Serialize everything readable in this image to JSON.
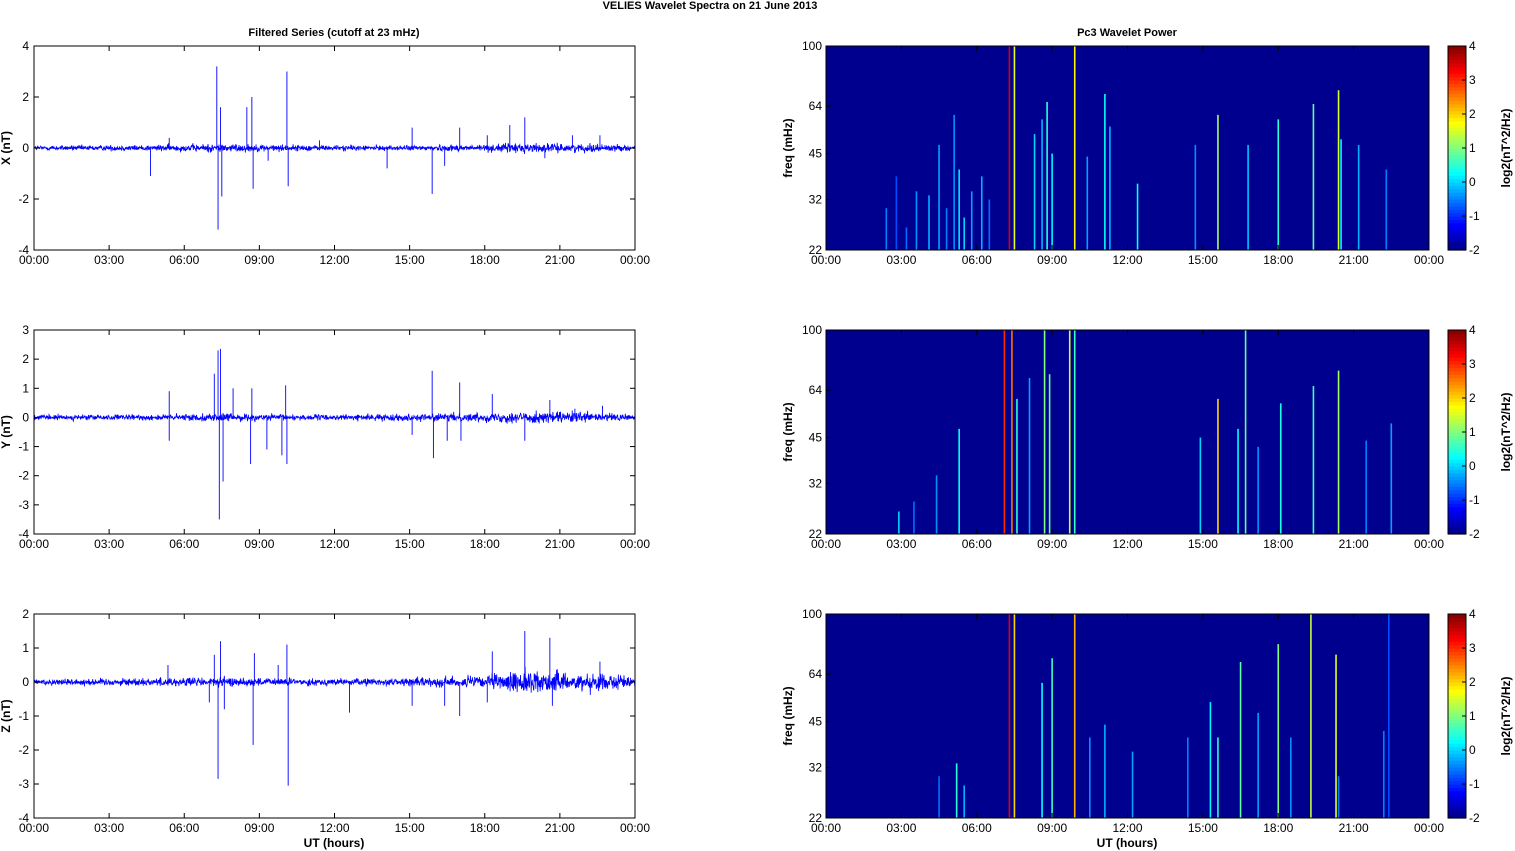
{
  "figure": {
    "title": "VELIES Wavelet Spectra on 21 June      2013",
    "left_title": "Filtered Series (cutoff at 23 mHz)",
    "right_title": "Pc3 Wavelet Power",
    "xlabel": "UT (hours)"
  },
  "colors": {
    "series_line": "#0000ff",
    "spectrogram_background": "#00008f",
    "colormap": "jet"
  },
  "chart_data": [
    {
      "type": "line",
      "id": "x-series",
      "ylabel": "X (nT)",
      "xlim": [
        0,
        24
      ],
      "ylim": [
        -4,
        4
      ],
      "xticks": [
        "00:00",
        "03:00",
        "06:00",
        "09:00",
        "12:00",
        "15:00",
        "18:00",
        "21:00",
        "00:00"
      ],
      "yticks": [
        -4,
        -2,
        0,
        2,
        4
      ],
      "noise": [
        [
          0,
          0.08
        ],
        [
          4.5,
          0.1
        ],
        [
          6,
          0.12
        ],
        [
          7.5,
          0.15
        ],
        [
          9,
          0.12
        ],
        [
          11,
          0.1
        ],
        [
          14,
          0.08
        ],
        [
          18,
          0.12
        ],
        [
          19.5,
          0.18
        ],
        [
          21,
          0.13
        ],
        [
          22.5,
          0.14
        ],
        [
          24,
          0.08
        ]
      ],
      "spikes": [
        [
          4.65,
          -1.1
        ],
        [
          5.4,
          0.4
        ],
        [
          7.3,
          3.2
        ],
        [
          7.35,
          -3.2
        ],
        [
          7.45,
          1.6
        ],
        [
          7.5,
          -1.9
        ],
        [
          8.5,
          1.6
        ],
        [
          8.7,
          2.0
        ],
        [
          8.75,
          -1.6
        ],
        [
          9.35,
          -0.5
        ],
        [
          10.1,
          3.0
        ],
        [
          10.15,
          -1.5
        ],
        [
          11.4,
          0.3
        ],
        [
          14.1,
          -0.8
        ],
        [
          15.1,
          0.8
        ],
        [
          15.9,
          -1.8
        ],
        [
          16.4,
          -0.7
        ],
        [
          17.0,
          0.8
        ],
        [
          18.1,
          0.5
        ],
        [
          19.0,
          0.9
        ],
        [
          19.6,
          1.2
        ],
        [
          20.4,
          -0.4
        ],
        [
          21.5,
          0.5
        ],
        [
          22.6,
          0.5
        ]
      ]
    },
    {
      "type": "line",
      "id": "y-series",
      "ylabel": "Y (nT)",
      "xlim": [
        0,
        24
      ],
      "ylim": [
        -4,
        3
      ],
      "xticks": [
        "00:00",
        "03:00",
        "06:00",
        "09:00",
        "12:00",
        "15:00",
        "18:00",
        "21:00",
        "00:00"
      ],
      "yticks": [
        -4,
        -3,
        -2,
        -1,
        0,
        1,
        2,
        3
      ],
      "noise": [
        [
          0,
          0.08
        ],
        [
          4.5,
          0.08
        ],
        [
          6,
          0.1
        ],
        [
          7.5,
          0.12
        ],
        [
          9,
          0.1
        ],
        [
          12,
          0.08
        ],
        [
          15,
          0.1
        ],
        [
          18,
          0.13
        ],
        [
          19.5,
          0.18
        ],
        [
          21,
          0.17
        ],
        [
          22.5,
          0.15
        ],
        [
          24,
          0.08
        ]
      ],
      "spikes": [
        [
          5.4,
          -0.8
        ],
        [
          5.4,
          0.9
        ],
        [
          7.2,
          1.5
        ],
        [
          7.35,
          2.3
        ],
        [
          7.4,
          -3.5
        ],
        [
          7.45,
          2.35
        ],
        [
          7.55,
          -2.2
        ],
        [
          7.95,
          1.0
        ],
        [
          8.65,
          -1.6
        ],
        [
          8.7,
          1.0
        ],
        [
          9.3,
          -1.1
        ],
        [
          9.9,
          -1.3
        ],
        [
          10.05,
          1.1
        ],
        [
          10.1,
          -1.6
        ],
        [
          15.1,
          -0.6
        ],
        [
          15.9,
          1.6
        ],
        [
          15.95,
          -1.4
        ],
        [
          16.5,
          -0.8
        ],
        [
          17.0,
          1.2
        ],
        [
          17.05,
          -0.8
        ],
        [
          18.3,
          0.8
        ],
        [
          19.6,
          -0.8
        ],
        [
          20.6,
          0.6
        ],
        [
          21.6,
          0.3
        ],
        [
          22.7,
          0.4
        ]
      ]
    },
    {
      "type": "line",
      "id": "z-series",
      "ylabel": "Z (nT)",
      "xlim": [
        0,
        24
      ],
      "ylim": [
        -4,
        2
      ],
      "xticks": [
        "00:00",
        "03:00",
        "06:00",
        "09:00",
        "12:00",
        "15:00",
        "18:00",
        "21:00",
        "00:00"
      ],
      "yticks": [
        -4,
        -3,
        -2,
        -1,
        0,
        1,
        2
      ],
      "noise": [
        [
          0,
          0.08
        ],
        [
          4.5,
          0.1
        ],
        [
          6,
          0.12
        ],
        [
          7.5,
          0.12
        ],
        [
          9,
          0.1
        ],
        [
          12,
          0.08
        ],
        [
          15,
          0.1
        ],
        [
          18,
          0.16
        ],
        [
          19.5,
          0.28
        ],
        [
          20.5,
          0.3
        ],
        [
          21.5,
          0.18
        ],
        [
          22.6,
          0.28
        ],
        [
          24,
          0.08
        ]
      ],
      "spikes": [
        [
          5.35,
          0.5
        ],
        [
          7.0,
          -0.6
        ],
        [
          7.2,
          0.8
        ],
        [
          7.35,
          -2.85
        ],
        [
          7.45,
          1.2
        ],
        [
          7.6,
          -0.8
        ],
        [
          8.75,
          -1.85
        ],
        [
          8.8,
          0.85
        ],
        [
          9.75,
          0.5
        ],
        [
          10.1,
          1.1
        ],
        [
          10.15,
          -3.05
        ],
        [
          12.6,
          -0.9
        ],
        [
          15.1,
          -0.7
        ],
        [
          16.4,
          -0.7
        ],
        [
          17.0,
          -1.0
        ],
        [
          18.1,
          -0.6
        ],
        [
          18.3,
          0.9
        ],
        [
          19.6,
          1.5
        ],
        [
          20.6,
          1.3
        ],
        [
          20.7,
          -0.7
        ],
        [
          22.6,
          0.6
        ]
      ]
    },
    {
      "type": "heatmap",
      "id": "x-wavelet",
      "ylabel": "freq (mHz)",
      "yscale": "log",
      "ylim": [
        22,
        100
      ],
      "yticks": [
        22,
        32,
        45,
        64,
        100
      ],
      "xlim": [
        0,
        24
      ],
      "xticks": [
        "00:00",
        "03:00",
        "06:00",
        "09:00",
        "12:00",
        "15:00",
        "18:00",
        "21:00",
        "00:00"
      ],
      "colorbar_label": "log2(nT^2/Hz)",
      "clim": [
        -2,
        4
      ],
      "colorbar_ticks": [
        -2,
        -1,
        0,
        1,
        2,
        3,
        4
      ],
      "streaks": [
        [
          2.4,
          30,
          -0.5
        ],
        [
          2.8,
          38,
          -0.8
        ],
        [
          3.2,
          26,
          -0.6
        ],
        [
          3.6,
          34,
          -0.4
        ],
        [
          4.1,
          33,
          -0.2
        ],
        [
          4.5,
          48,
          -0.3
        ],
        [
          4.8,
          30,
          -0.5
        ],
        [
          5.1,
          60,
          -0.4
        ],
        [
          5.3,
          40,
          0.1
        ],
        [
          5.5,
          28,
          0.0
        ],
        [
          5.8,
          34,
          -0.3
        ],
        [
          6.2,
          38,
          -0.2
        ],
        [
          6.5,
          32,
          -0.6
        ],
        [
          7.3,
          100,
          3.5
        ],
        [
          7.5,
          100,
          1.6
        ],
        [
          8.3,
          52,
          0.0
        ],
        [
          8.6,
          58,
          -0.2
        ],
        [
          8.8,
          66,
          0.5
        ],
        [
          9.0,
          45,
          0.2
        ],
        [
          9.9,
          100,
          1.8
        ],
        [
          10.4,
          44,
          -0.3
        ],
        [
          11.1,
          70,
          0.3
        ],
        [
          11.3,
          55,
          -0.2
        ],
        [
          12.4,
          36,
          0.3
        ],
        [
          14.7,
          48,
          -0.4
        ],
        [
          15.6,
          60,
          1.2
        ],
        [
          16.8,
          48,
          -0.1
        ],
        [
          18.0,
          58,
          0.5
        ],
        [
          19.4,
          65,
          0.8
        ],
        [
          20.4,
          72,
          1.5
        ],
        [
          20.5,
          50,
          0.3
        ],
        [
          21.2,
          48,
          -0.2
        ],
        [
          22.3,
          40,
          -0.5
        ]
      ]
    },
    {
      "type": "heatmap",
      "id": "y-wavelet",
      "ylabel": "freq (mHz)",
      "yscale": "log",
      "ylim": [
        22,
        100
      ],
      "yticks": [
        22,
        32,
        45,
        64,
        100
      ],
      "xlim": [
        0,
        24
      ],
      "xticks": [
        "00:00",
        "03:00",
        "06:00",
        "09:00",
        "12:00",
        "15:00",
        "18:00",
        "21:00",
        "00:00"
      ],
      "colorbar_label": "log2(nT^2/Hz)",
      "clim": [
        -2,
        4
      ],
      "colorbar_ticks": [
        -2,
        -1,
        0,
        1,
        2,
        3,
        4
      ],
      "streaks": [
        [
          2.9,
          26,
          0.0
        ],
        [
          3.5,
          28,
          -0.6
        ],
        [
          4.4,
          34,
          -0.4
        ],
        [
          5.3,
          48,
          0.3
        ],
        [
          7.1,
          100,
          3.0
        ],
        [
          7.4,
          100,
          2.6
        ],
        [
          7.6,
          60,
          0.5
        ],
        [
          8.1,
          70,
          -0.3
        ],
        [
          8.7,
          100,
          1.0
        ],
        [
          8.9,
          72,
          0.8
        ],
        [
          9.7,
          100,
          1.5
        ],
        [
          9.9,
          100,
          0.6
        ],
        [
          14.9,
          45,
          0.0
        ],
        [
          15.6,
          60,
          2.0
        ],
        [
          16.4,
          48,
          0.3
        ],
        [
          16.7,
          100,
          0.8
        ],
        [
          17.2,
          42,
          -0.4
        ],
        [
          18.1,
          58,
          0.4
        ],
        [
          19.4,
          66,
          0.6
        ],
        [
          20.4,
          74,
          1.2
        ],
        [
          21.5,
          44,
          -0.5
        ],
        [
          22.5,
          50,
          -0.3
        ]
      ]
    },
    {
      "type": "heatmap",
      "id": "z-wavelet",
      "ylabel": "freq (mHz)",
      "yscale": "log",
      "ylim": [
        22,
        100
      ],
      "yticks": [
        22,
        32,
        45,
        64,
        100
      ],
      "xlim": [
        0,
        24
      ],
      "xticks": [
        "00:00",
        "03:00",
        "06:00",
        "09:00",
        "12:00",
        "15:00",
        "18:00",
        "21:00",
        "00:00"
      ],
      "colorbar_label": "log2(nT^2/Hz)",
      "clim": [
        -2,
        4
      ],
      "colorbar_ticks": [
        -2,
        -1,
        0,
        1,
        2,
        3,
        4
      ],
      "streaks": [
        [
          4.5,
          30,
          -0.6
        ],
        [
          5.2,
          33,
          0.5
        ],
        [
          5.5,
          28,
          -0.2
        ],
        [
          7.3,
          100,
          3.4
        ],
        [
          7.5,
          100,
          2.0
        ],
        [
          8.6,
          60,
          0.3
        ],
        [
          9.0,
          72,
          0.6
        ],
        [
          9.9,
          100,
          2.2
        ],
        [
          10.5,
          40,
          -0.4
        ],
        [
          11.1,
          44,
          -0.2
        ],
        [
          12.2,
          36,
          -0.3
        ],
        [
          14.4,
          40,
          -0.5
        ],
        [
          15.3,
          52,
          0.2
        ],
        [
          15.6,
          40,
          0.5
        ],
        [
          16.5,
          70,
          0.8
        ],
        [
          17.2,
          48,
          -0.3
        ],
        [
          18.0,
          80,
          1.0
        ],
        [
          18.5,
          40,
          -0.4
        ],
        [
          19.3,
          100,
          1.4
        ],
        [
          20.3,
          74,
          1.6
        ],
        [
          20.4,
          30,
          -0.5
        ],
        [
          22.2,
          42,
          -0.5
        ],
        [
          22.4,
          100,
          -0.8
        ]
      ]
    }
  ]
}
